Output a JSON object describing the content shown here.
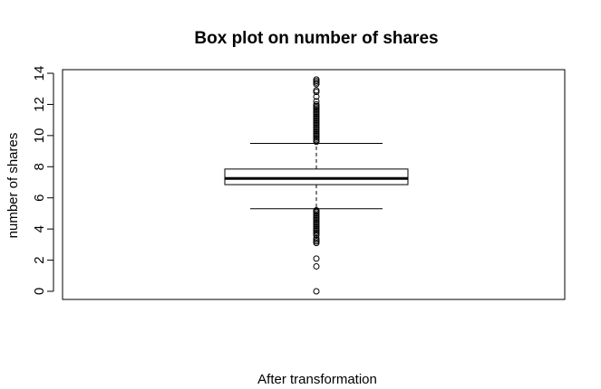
{
  "chart_data": {
    "type": "box",
    "title": "Box plot on number of shares",
    "xlabel": "After transformation",
    "ylabel": "number of shares",
    "ylim": [
      0,
      14
    ],
    "yticks": [
      "0",
      "2",
      "4",
      "6",
      "8",
      "10",
      "12",
      "14"
    ],
    "grid": false,
    "legend": "none",
    "box": {
      "q1": 6.85,
      "median": 7.25,
      "q3": 7.85,
      "whisker_low": 5.3,
      "whisker_high": 9.5
    },
    "outliers_low": [
      0.0,
      1.6,
      2.1,
      3.1,
      3.2,
      3.3,
      3.4,
      3.6,
      3.7,
      3.8,
      3.9,
      4.0,
      4.1,
      4.2,
      4.3,
      4.4,
      4.5,
      4.6,
      4.7,
      4.8,
      4.9,
      5.0,
      5.1,
      5.15,
      5.2
    ],
    "outliers_high": [
      9.6,
      9.7,
      9.8,
      9.9,
      10.0,
      10.1,
      10.2,
      10.3,
      10.4,
      10.5,
      10.6,
      10.7,
      10.8,
      10.9,
      11.0,
      11.1,
      11.2,
      11.3,
      11.4,
      11.5,
      11.6,
      11.7,
      11.8,
      11.9,
      12.0,
      12.2,
      12.5,
      12.8,
      12.9,
      13.3,
      13.4,
      13.5,
      13.6
    ]
  }
}
